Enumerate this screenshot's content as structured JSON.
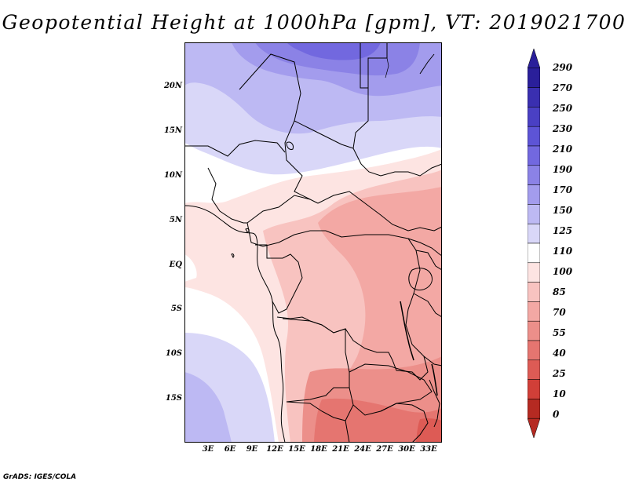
{
  "title": "Geopotential Height at 1000hPa [gpm], VT: 2019021700",
  "map": {
    "variable": "Geopotential Height",
    "level": "1000hPa",
    "units": "gpm",
    "valid_time": "2019021700",
    "lat_labels": [
      "20N",
      "15N",
      "10N",
      "5N",
      "EQ",
      "5S",
      "10S",
      "15S"
    ],
    "lon_labels": [
      "3E",
      "6E",
      "9E",
      "12E",
      "15E",
      "18E",
      "21E",
      "24E",
      "27E",
      "30E",
      "33E"
    ]
  },
  "legend": {
    "levels": [
      "290",
      "270",
      "250",
      "230",
      "210",
      "190",
      "170",
      "150",
      "125",
      "110",
      "100",
      "85",
      "70",
      "55",
      "40",
      "25",
      "10",
      "0"
    ],
    "colors": [
      "#2a1f9a",
      "#3a2fb0",
      "#4a40c4",
      "#5d54d6",
      "#7268df",
      "#8b82e6",
      "#a39ced",
      "#bdb9f3",
      "#d9d7f8",
      "#ffffff",
      "#fde4e2",
      "#f8c3c0",
      "#f3a8a4",
      "#ec8f8a",
      "#e57570",
      "#dd5b55",
      "#d13f38",
      "#b52a22"
    ]
  },
  "credit": "GrADS: IGES/COLA"
}
